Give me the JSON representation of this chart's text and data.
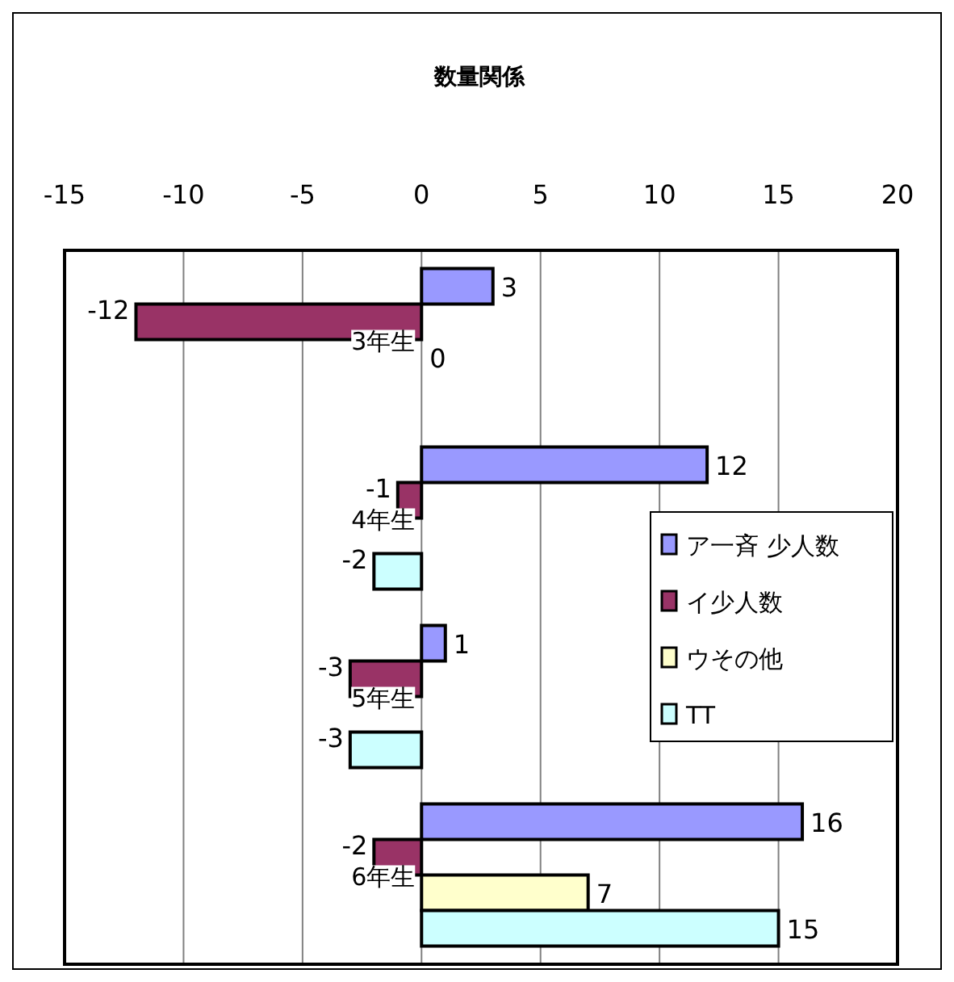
{
  "chart_data": {
    "type": "bar",
    "orientation": "horizontal",
    "title": "数量関係",
    "categories": [
      "3年生",
      "4年生",
      "5年生",
      "6年生"
    ],
    "series": [
      {
        "name": "ア一斉 少人数",
        "color": "#9999ff",
        "values": [
          3,
          12,
          1,
          16
        ]
      },
      {
        "name": "イ少人数",
        "color": "#993366",
        "values": [
          -12,
          -1,
          -3,
          -2
        ]
      },
      {
        "name": "ウその他",
        "color": "#ffffcc",
        "values": [
          0,
          null,
          null,
          7
        ]
      },
      {
        "name": "TT",
        "color": "#ccffff",
        "values": [
          null,
          -2,
          -3,
          15
        ]
      }
    ],
    "xlim": [
      -15,
      20
    ],
    "xticks": [
      -15,
      -10,
      -5,
      0,
      5,
      10,
      15,
      20
    ],
    "grid": "x",
    "legend": "right",
    "data_labels": true
  }
}
